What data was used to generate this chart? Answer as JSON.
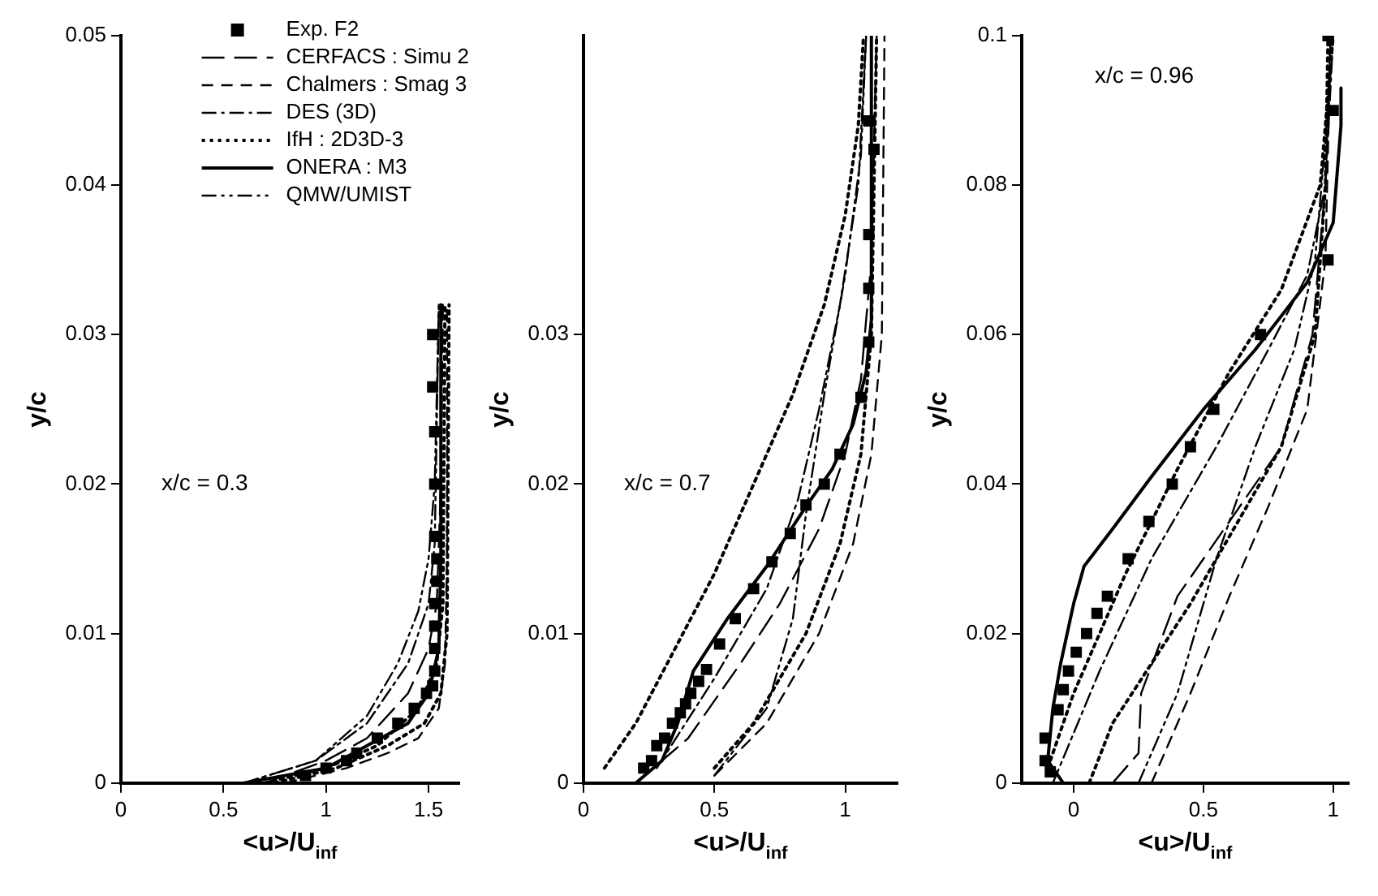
{
  "chart_data": [
    {
      "type": "line",
      "xlabel": "<u>/U$_{inf}$",
      "ylabel": "y/c",
      "annotations": [
        "x/c = 0.3"
      ],
      "xlim": [
        0,
        1.65
      ],
      "ylim": [
        0,
        0.05
      ],
      "xticks": [
        0,
        0.5,
        1,
        1.5
      ],
      "yticks": [
        0,
        0.01,
        0.02,
        0.03,
        0.04,
        0.05
      ],
      "legend": "top right",
      "series": [
        {
          "name": "Exp. F2",
          "type": "scatter",
          "marker": "square",
          "color": "#000000",
          "x": [
            0.9,
            1.0,
            1.1,
            1.15,
            1.25,
            1.35,
            1.43,
            1.49,
            1.52,
            1.53,
            1.53,
            1.53,
            1.53,
            1.54,
            1.54,
            1.53,
            1.53,
            1.53,
            1.52,
            1.52
          ],
          "values": [
            0.0005,
            0.001,
            0.0015,
            0.002,
            0.003,
            0.004,
            0.005,
            0.006,
            0.0065,
            0.0075,
            0.009,
            0.0105,
            0.012,
            0.0135,
            0.015,
            0.0165,
            0.02,
            0.0235,
            0.0265,
            0.03
          ]
        },
        {
          "name": "CERFACS : Simu 2",
          "line_style": "dashed",
          "color": "#000000",
          "x": [
            0.7,
            1.0,
            1.2,
            1.4,
            1.5,
            1.54,
            1.56,
            1.57
          ],
          "values": [
            0,
            0.0015,
            0.003,
            0.006,
            0.009,
            0.012,
            0.02,
            0.032
          ]
        },
        {
          "name": "Chalmers : Smag 3",
          "line_style": "dashed",
          "color": "#000000",
          "x": [
            0.8,
            1.1,
            1.3,
            1.45,
            1.55,
            1.58,
            1.59,
            1.59
          ],
          "values": [
            0,
            0.001,
            0.002,
            0.003,
            0.005,
            0.008,
            0.015,
            0.032
          ]
        },
        {
          "line_style": "dotted",
          "color": "#000000",
          "x": [
            0.7,
            1.0,
            1.25,
            1.45,
            1.54,
            1.57,
            1.58
          ],
          "values": [
            0,
            0.001,
            0.0025,
            0.005,
            0.008,
            0.012,
            0.032
          ]
        },
        {
          "name": "DES (3D)",
          "line_style": "dashed",
          "color": "#000000",
          "x": [
            0.6,
            0.95,
            1.2,
            1.4,
            1.5,
            1.53,
            1.55
          ],
          "values": [
            0,
            0.0015,
            0.004,
            0.008,
            0.012,
            0.016,
            0.032
          ]
        },
        {
          "name": "IfH : 2D3D-3",
          "line_style": "dotted",
          "color": "#000000",
          "x": [
            0.75,
            1.05,
            1.3,
            1.48,
            1.56,
            1.59,
            1.6
          ],
          "values": [
            0,
            0.001,
            0.0025,
            0.004,
            0.006,
            0.01,
            0.032
          ]
        },
        {
          "name": "ONERA : M3",
          "line_style": "solid",
          "color": "#000000",
          "x": [
            0.6,
            1.0,
            1.2,
            1.4,
            1.5,
            1.55,
            1.56,
            1.56
          ],
          "values": [
            0,
            0.001,
            0.0025,
            0.004,
            0.006,
            0.009,
            0.015,
            0.032
          ]
        },
        {
          "name": "QMW/UMIST",
          "line_style": "dashed",
          "color": "#000000",
          "x": [
            0.6,
            0.95,
            1.2,
            1.35,
            1.45,
            1.5,
            1.53,
            1.55
          ],
          "values": [
            0,
            0.0015,
            0.0045,
            0.008,
            0.0115,
            0.015,
            0.02,
            0.032
          ]
        }
      ]
    },
    {
      "type": "line",
      "xlabel": "<u>/U$_{inf}$",
      "ylabel": "y/c",
      "annotations": [
        "x/c = 0.7"
      ],
      "xlim": [
        0,
        1.2
      ],
      "ylim": [
        0,
        0.05
      ],
      "xticks": [
        0,
        0.5,
        1
      ],
      "yticks": [
        0,
        0.01,
        0.02,
        0.03
      ],
      "series": [
        {
          "type": "scatter",
          "marker": "square",
          "color": "#000000",
          "x": [
            0.23,
            0.26,
            0.28,
            0.31,
            0.34,
            0.37,
            0.39,
            0.41,
            0.44,
            0.47,
            0.52,
            0.58,
            0.65,
            0.72,
            0.79,
            0.85,
            0.92,
            0.98,
            1.06,
            1.09,
            1.09,
            1.09,
            1.11,
            1.09
          ],
          "values": [
            0.001,
            0.0015,
            0.0025,
            0.003,
            0.004,
            0.0047,
            0.0053,
            0.006,
            0.0068,
            0.0076,
            0.0093,
            0.011,
            0.013,
            0.0148,
            0.0167,
            0.0186,
            0.02,
            0.022,
            0.0258,
            0.0295,
            0.0331,
            0.0367,
            0.0424,
            0.0443
          ]
        },
        {
          "line_style": "dashed",
          "color": "#000000",
          "x": [
            0.2,
            0.4,
            0.6,
            0.75,
            0.9,
            1.0,
            1.06,
            1.1,
            1.12
          ],
          "values": [
            0,
            0.003,
            0.008,
            0.012,
            0.017,
            0.022,
            0.027,
            0.035,
            0.05
          ]
        },
        {
          "line_style": "dashed",
          "color": "#000000",
          "x": [
            0.5,
            0.7,
            0.9,
            1.03,
            1.1,
            1.14,
            1.15
          ],
          "values": [
            0.0005,
            0.004,
            0.01,
            0.016,
            0.022,
            0.03,
            0.05
          ]
        },
        {
          "line_style": "dotted",
          "color": "#000000",
          "x": [
            0.08,
            0.2,
            0.35,
            0.5,
            0.65,
            0.8,
            0.92,
            1.0,
            1.05,
            1.07
          ],
          "values": [
            0.001,
            0.004,
            0.009,
            0.014,
            0.02,
            0.026,
            0.032,
            0.038,
            0.044,
            0.05
          ]
        },
        {
          "line_style": "dashed",
          "color": "#000000",
          "x": [
            0.28,
            0.5,
            0.7,
            0.82,
            0.9,
            0.98,
            1.05,
            1.08
          ],
          "values": [
            0.001,
            0.007,
            0.013,
            0.019,
            0.025,
            0.032,
            0.04,
            0.05
          ]
        },
        {
          "line_style": "dotted",
          "color": "#000000",
          "x": [
            0.5,
            0.65,
            0.85,
            0.98,
            1.06,
            1.1,
            1.12
          ],
          "values": [
            0.001,
            0.004,
            0.01,
            0.016,
            0.022,
            0.03,
            0.05
          ]
        },
        {
          "line_style": "solid",
          "color": "#000000",
          "x": [
            0.2,
            0.3,
            0.36,
            0.42,
            0.55,
            0.7,
            0.85,
            0.95,
            1.03,
            1.08,
            1.1,
            1.1
          ],
          "values": [
            0,
            0.0015,
            0.004,
            0.0075,
            0.011,
            0.0145,
            0.0185,
            0.021,
            0.024,
            0.0275,
            0.031,
            0.05
          ]
        },
        {
          "line_style": "dashed",
          "color": "#000000",
          "x": [
            0.5,
            0.7,
            0.8,
            0.85,
            0.92,
            1.0,
            1.06,
            1.08
          ],
          "values": [
            0.0005,
            0.005,
            0.011,
            0.018,
            0.026,
            0.034,
            0.042,
            0.05
          ]
        }
      ]
    },
    {
      "type": "line",
      "xlabel": "<u>/U$_{inf}$",
      "ylabel": "y/c",
      "annotations": [
        "x/c = 0.96"
      ],
      "xlim": [
        -0.2,
        1.06
      ],
      "ylim": [
        0,
        0.1
      ],
      "xticks": [
        0,
        0.5,
        1
      ],
      "yticks": [
        0,
        0.02,
        0.04,
        0.06,
        0.08,
        0.1
      ],
      "series": [
        {
          "type": "scatter",
          "marker": "square",
          "color": "#000000",
          "x": [
            -0.09,
            -0.11,
            -0.11,
            -0.06,
            -0.04,
            -0.02,
            0.01,
            0.05,
            0.09,
            0.13,
            0.21,
            0.29,
            0.38,
            0.45,
            0.54,
            0.72,
            0.98,
            1.0,
            0.98
          ],
          "values": [
            0.0015,
            0.003,
            0.006,
            0.0098,
            0.0125,
            0.015,
            0.0175,
            0.02,
            0.0227,
            0.025,
            0.03,
            0.035,
            0.04,
            0.045,
            0.05,
            0.06,
            0.07,
            0.09,
            0.1
          ]
        },
        {
          "line_style": "dashed",
          "color": "#000000",
          "x": [
            0.15,
            0.25,
            0.26,
            0.4,
            0.6,
            0.8,
            0.92,
            0.97,
            0.99
          ],
          "values": [
            0,
            0.004,
            0.012,
            0.025,
            0.035,
            0.045,
            0.06,
            0.08,
            0.1
          ]
        },
        {
          "line_style": "dashed",
          "color": "#000000",
          "x": [
            0.3,
            0.45,
            0.6,
            0.75,
            0.9,
            0.97,
            0.99
          ],
          "values": [
            0,
            0.012,
            0.025,
            0.037,
            0.05,
            0.07,
            0.1
          ]
        },
        {
          "line_style": "dotted",
          "color": "#000000",
          "x": [
            -0.1,
            0.0,
            0.2,
            0.4,
            0.6,
            0.8,
            0.95,
            1.0
          ],
          "values": [
            0.002,
            0.012,
            0.028,
            0.042,
            0.055,
            0.066,
            0.08,
            0.1
          ]
        },
        {
          "line_style": "dashed",
          "color": "#000000",
          "x": [
            -0.08,
            0.1,
            0.3,
            0.55,
            0.75,
            0.9,
            0.97,
            1.0
          ],
          "values": [
            0,
            0.015,
            0.03,
            0.045,
            0.058,
            0.068,
            0.08,
            0.1
          ]
        },
        {
          "line_style": "dotted",
          "color": "#000000",
          "x": [
            0.06,
            0.15,
            0.3,
            0.45,
            0.6,
            0.8,
            0.93,
            0.97,
            0.98
          ],
          "values": [
            0,
            0.008,
            0.016,
            0.024,
            0.033,
            0.045,
            0.06,
            0.08,
            0.1
          ]
        },
        {
          "line_style": "solid",
          "color": "#000000",
          "x": [
            -0.04,
            -0.1,
            -0.08,
            -0.05,
            0.0,
            0.04,
            0.15,
            0.3,
            0.5,
            0.7,
            0.9,
            1.0,
            1.03,
            1.03
          ],
          "values": [
            0,
            0.003,
            0.01,
            0.016,
            0.024,
            0.029,
            0.034,
            0.041,
            0.05,
            0.058,
            0.067,
            0.075,
            0.088,
            0.093
          ]
        },
        {
          "line_style": "dashed",
          "color": "#000000",
          "x": [
            0.25,
            0.4,
            0.55,
            0.7,
            0.85,
            0.93,
            0.98,
            0.99
          ],
          "values": [
            0,
            0.012,
            0.03,
            0.045,
            0.058,
            0.07,
            0.09,
            0.1
          ]
        }
      ]
    }
  ]
}
